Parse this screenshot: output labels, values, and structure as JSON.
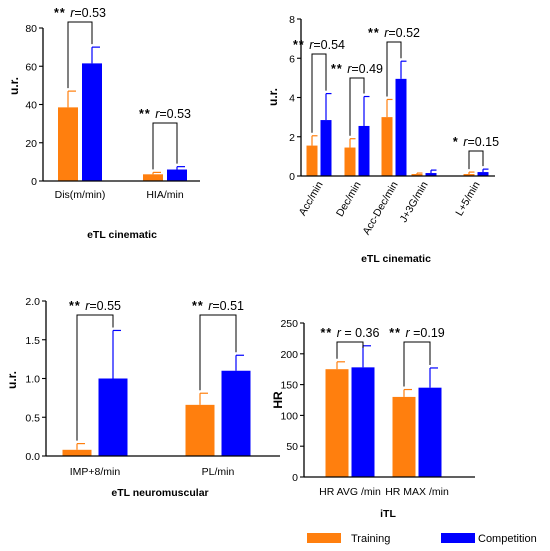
{
  "colors": {
    "training": "#FF7F0E",
    "competition": "#0000FF",
    "background": "#FFFFFF"
  },
  "legend": {
    "items": [
      {
        "label": "Training",
        "color": "#FF7F0E"
      },
      {
        "label": "Competition",
        "color": "#0000FF"
      }
    ],
    "placement": "bottom-right"
  },
  "chart_data": [
    {
      "type": "bar",
      "id": "p1",
      "title": "",
      "xlabel": "eTL cinematic",
      "ylabel": "u.r.",
      "ylim": [
        0,
        80
      ],
      "yticks": [
        0,
        20,
        40,
        60,
        80
      ],
      "categories": [
        "Dis(m/min)",
        "HIA/min"
      ],
      "series": [
        {
          "name": "Training",
          "values": [
            38.5,
            3.5
          ],
          "errors": [
            8.5,
            1.0
          ]
        },
        {
          "name": "Competition",
          "values": [
            61.5,
            6.0
          ],
          "errors": [
            8.5,
            1.5
          ]
        }
      ],
      "annotations": [
        {
          "category": "Dis(m/min)",
          "stars": "**",
          "text": "r=0.53"
        },
        {
          "category": "HIA/min",
          "stars": "**",
          "text": "r=0.53"
        }
      ]
    },
    {
      "type": "bar",
      "id": "p2",
      "title": "",
      "xlabel": "eTL cinematic",
      "ylabel": "u.r.",
      "ylim": [
        0,
        8
      ],
      "yticks": [
        0,
        2,
        4,
        6,
        8
      ],
      "categories": [
        "Acc/min",
        "Dec/min",
        "Acc-Dec/min",
        "J+3G/min",
        "L+5/min"
      ],
      "series": [
        {
          "name": "Training",
          "values": [
            1.55,
            1.45,
            3.0,
            0.1,
            0.1
          ],
          "errors": [
            0.5,
            0.45,
            0.9,
            0.05,
            0.1
          ]
        },
        {
          "name": "Competition",
          "values": [
            2.85,
            2.55,
            4.95,
            0.15,
            0.2
          ],
          "errors": [
            1.35,
            1.5,
            0.9,
            0.15,
            0.15
          ]
        }
      ],
      "annotations": [
        {
          "category": "Acc/min",
          "stars": "**",
          "text": "r=0.54"
        },
        {
          "category": "Dec/min",
          "stars": "**",
          "text": "r=0.49"
        },
        {
          "category": "Acc-Dec/min",
          "stars": "**",
          "text": "r=0.52"
        },
        {
          "category": "L+5/min",
          "stars": "*",
          "text": "r=0.15"
        }
      ]
    },
    {
      "type": "bar",
      "id": "p3",
      "title": "",
      "xlabel": "eTL neuromuscular",
      "ylabel": "u.r.",
      "ylim": [
        0,
        2.0
      ],
      "yticks": [
        "0.0",
        "0.5",
        "1.0",
        "1.5",
        "2.0"
      ],
      "categories": [
        "IMP+8/min",
        "PL/min"
      ],
      "series": [
        {
          "name": "Training",
          "values": [
            0.08,
            0.66
          ],
          "errors": [
            0.08,
            0.15
          ]
        },
        {
          "name": "Competition",
          "values": [
            1.0,
            1.1
          ],
          "errors": [
            0.62,
            0.2
          ]
        }
      ],
      "annotations": [
        {
          "category": "IMP+8/min",
          "stars": "**",
          "text": "r=0.55"
        },
        {
          "category": "PL/min",
          "stars": "**",
          "text": "r=0.51"
        }
      ]
    },
    {
      "type": "bar",
      "id": "p4",
      "title": "",
      "xlabel": "iTL",
      "ylabel": "HR",
      "ylim": [
        0,
        250
      ],
      "yticks": [
        0,
        50,
        100,
        150,
        200,
        250
      ],
      "categories": [
        "HR AVG /min",
        "HR MAX /min"
      ],
      "series": [
        {
          "name": "Training",
          "values": [
            175,
            130
          ],
          "errors": [
            12,
            12
          ]
        },
        {
          "name": "Competition",
          "values": [
            178,
            145
          ],
          "errors": [
            35,
            32
          ]
        }
      ],
      "annotations": [
        {
          "category": "HR AVG /min",
          "stars": "**",
          "text": "r = 0.36"
        },
        {
          "category": "HR MAX /min",
          "stars": "**",
          "text": "r =0.19"
        }
      ]
    }
  ]
}
